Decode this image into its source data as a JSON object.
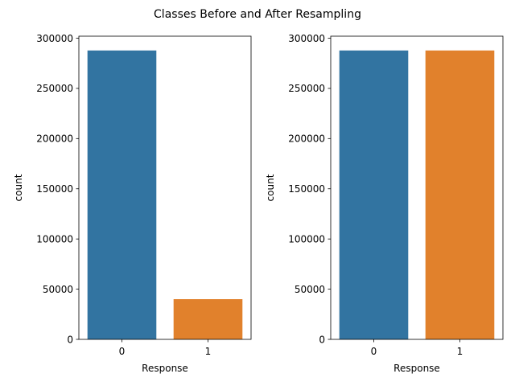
{
  "figure": {
    "suptitle": "Classes Before and After Resampling"
  },
  "chart_data": [
    {
      "type": "bar",
      "categories": [
        "0",
        "1"
      ],
      "values": [
        287775,
        40034
      ],
      "colors": [
        "#3274a1",
        "#e1812c"
      ],
      "xlabel": "Response",
      "ylabel": "count",
      "ylim": [
        0,
        302000
      ],
      "yticks": [
        0,
        50000,
        100000,
        150000,
        200000,
        250000,
        300000
      ],
      "grid": false
    },
    {
      "type": "bar",
      "categories": [
        "0",
        "1"
      ],
      "values": [
        287775,
        287775
      ],
      "colors": [
        "#3274a1",
        "#e1812c"
      ],
      "xlabel": "Response",
      "ylabel": "count",
      "ylim": [
        0,
        302000
      ],
      "yticks": [
        0,
        50000,
        100000,
        150000,
        200000,
        250000,
        300000
      ],
      "grid": false
    }
  ]
}
